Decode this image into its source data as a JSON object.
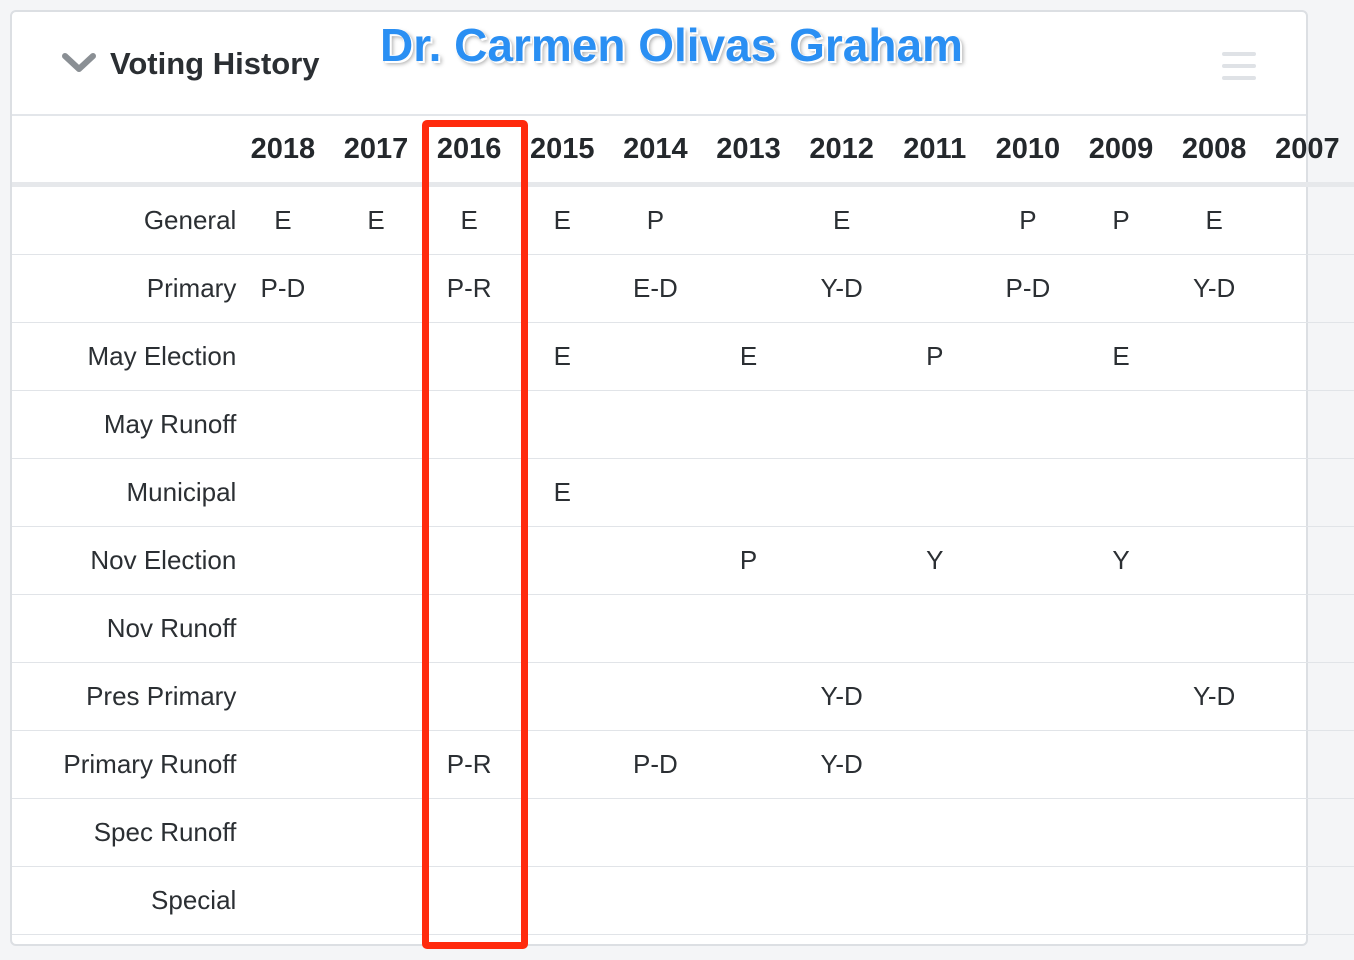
{
  "panel": {
    "title": "Voting History",
    "annotation_name": "Dr. Carmen Olivas Graham",
    "icons": {
      "collapse": "chevron-down-icon",
      "menu": "hamburger-menu-icon"
    }
  },
  "colors": {
    "highlight": "#ff2a0d",
    "annotation": "#2a8ff3"
  },
  "table": {
    "years": [
      "2018",
      "2017",
      "2016",
      "2015",
      "2014",
      "2013",
      "2012",
      "2011",
      "2010",
      "2009",
      "2008",
      "2007"
    ],
    "highlighted_year": "2016",
    "rows": [
      {
        "label": "General",
        "cells": [
          "E",
          "E",
          "E",
          "E",
          "P",
          "",
          "E",
          "",
          "P",
          "P",
          "E",
          ""
        ]
      },
      {
        "label": "Primary",
        "cells": [
          "P-D",
          "",
          "P-R",
          "",
          "E-D",
          "",
          "Y-D",
          "",
          "P-D",
          "",
          "Y-D",
          ""
        ]
      },
      {
        "label": "May Election",
        "cells": [
          "",
          "",
          "",
          "E",
          "",
          "E",
          "",
          "P",
          "",
          "E",
          "",
          ""
        ]
      },
      {
        "label": "May Runoff",
        "cells": [
          "",
          "",
          "",
          "",
          "",
          "",
          "",
          "",
          "",
          "",
          "",
          ""
        ]
      },
      {
        "label": "Municipal",
        "cells": [
          "",
          "",
          "",
          "E",
          "",
          "",
          "",
          "",
          "",
          "",
          "",
          ""
        ]
      },
      {
        "label": "Nov Election",
        "cells": [
          "",
          "",
          "",
          "",
          "",
          "P",
          "",
          "Y",
          "",
          "Y",
          "",
          ""
        ]
      },
      {
        "label": "Nov Runoff",
        "cells": [
          "",
          "",
          "",
          "",
          "",
          "",
          "",
          "",
          "",
          "",
          "",
          ""
        ]
      },
      {
        "label": "Pres Primary",
        "cells": [
          "",
          "",
          "",
          "",
          "",
          "",
          "Y-D",
          "",
          "",
          "",
          "Y-D",
          ""
        ]
      },
      {
        "label": "Primary Runoff",
        "cells": [
          "",
          "",
          "P-R",
          "",
          "P-D",
          "",
          "Y-D",
          "",
          "",
          "",
          "",
          ""
        ]
      },
      {
        "label": "Spec Runoff",
        "cells": [
          "",
          "",
          "",
          "",
          "",
          "",
          "",
          "",
          "",
          "",
          "",
          ""
        ]
      },
      {
        "label": "Special",
        "cells": [
          "",
          "",
          "",
          "",
          "",
          "",
          "",
          "",
          "",
          "",
          "",
          ""
        ]
      }
    ]
  }
}
